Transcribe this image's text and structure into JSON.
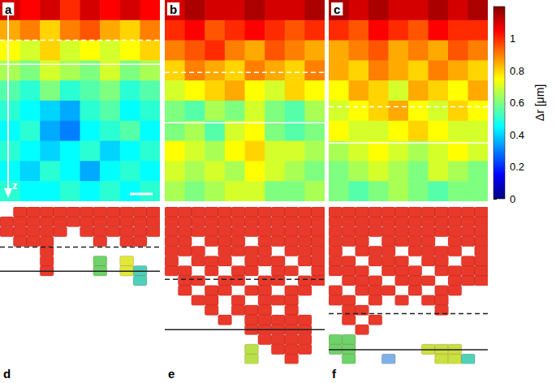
{
  "chart_data": [
    {
      "type": "heatmap",
      "title": "a",
      "axis_label": "z",
      "ylim": [
        0,
        1
      ],
      "tick_labels": false,
      "lines": {
        "dashed": 0.2,
        "solid": 0.32
      },
      "values": [
        [
          1.1,
          1.05,
          1.1,
          1.0,
          1.1,
          1.05,
          1.1,
          1.05
        ],
        [
          0.85,
          0.9,
          0.8,
          0.9,
          0.95,
          0.85,
          0.8,
          0.9
        ],
        [
          0.75,
          0.7,
          0.8,
          0.7,
          0.75,
          0.7,
          0.75,
          0.8
        ],
        [
          0.65,
          0.6,
          0.7,
          0.65,
          0.6,
          0.7,
          0.6,
          0.65
        ],
        [
          0.55,
          0.5,
          0.6,
          0.5,
          0.55,
          0.6,
          0.5,
          0.55
        ],
        [
          0.5,
          0.45,
          0.4,
          0.35,
          0.5,
          0.55,
          0.45,
          0.5
        ],
        [
          0.45,
          0.5,
          0.35,
          0.3,
          0.45,
          0.5,
          0.55,
          0.45
        ],
        [
          0.5,
          0.45,
          0.4,
          0.45,
          0.5,
          0.4,
          0.45,
          0.5
        ],
        [
          0.45,
          0.4,
          0.5,
          0.45,
          0.35,
          0.45,
          0.5,
          0.45
        ],
        [
          0.5,
          0.45,
          0.45,
          0.5,
          0.45,
          0.5,
          0.45,
          0.5
        ]
      ]
    },
    {
      "type": "heatmap",
      "title": "b",
      "ylim": [
        0,
        1
      ],
      "tick_labels": false,
      "lines": {
        "dashed": 0.36,
        "solid": 0.61
      },
      "values": [
        [
          1.1,
          1.15,
          1.1,
          1.1,
          1.15,
          1.1,
          1.1,
          1.15
        ],
        [
          1.0,
          1.05,
          0.95,
          1.0,
          1.05,
          1.0,
          0.95,
          1.0
        ],
        [
          0.9,
          0.95,
          1.0,
          0.9,
          0.85,
          0.95,
          0.9,
          0.85
        ],
        [
          0.8,
          0.9,
          0.85,
          0.8,
          0.9,
          0.85,
          0.8,
          0.9
        ],
        [
          0.7,
          0.75,
          0.8,
          0.85,
          0.75,
          0.7,
          0.8,
          0.75
        ],
        [
          0.6,
          0.55,
          0.65,
          0.6,
          0.7,
          0.6,
          0.55,
          0.65
        ],
        [
          0.6,
          0.65,
          0.55,
          0.7,
          0.75,
          0.6,
          0.55,
          0.6
        ],
        [
          0.75,
          0.7,
          0.65,
          0.75,
          0.8,
          0.7,
          0.7,
          0.65
        ],
        [
          0.7,
          0.65,
          0.7,
          0.65,
          0.75,
          0.7,
          0.65,
          0.6
        ],
        [
          0.65,
          0.6,
          0.65,
          0.7,
          0.7,
          0.6,
          0.6,
          0.65
        ]
      ]
    },
    {
      "type": "heatmap",
      "title": "c",
      "ylim": [
        0,
        1
      ],
      "tick_labels": false,
      "lines": {
        "dashed": 0.53,
        "solid": 0.71
      },
      "values": [
        [
          1.15,
          1.1,
          1.15,
          1.1,
          1.1,
          1.15,
          1.1,
          1.15
        ],
        [
          1.0,
          0.95,
          1.05,
          1.0,
          0.95,
          1.05,
          1.0,
          1.0
        ],
        [
          0.85,
          0.9,
          0.95,
          0.85,
          0.9,
          0.85,
          0.95,
          0.9
        ],
        [
          0.85,
          0.8,
          0.9,
          0.85,
          0.8,
          0.9,
          0.85,
          0.8
        ],
        [
          0.75,
          0.85,
          0.8,
          0.7,
          0.85,
          0.8,
          0.75,
          0.85
        ],
        [
          0.7,
          0.75,
          0.8,
          0.85,
          0.75,
          0.7,
          0.8,
          0.75
        ],
        [
          0.75,
          0.7,
          0.7,
          0.75,
          0.8,
          0.75,
          0.7,
          0.7
        ],
        [
          0.65,
          0.7,
          0.75,
          0.7,
          0.65,
          0.7,
          0.75,
          0.7
        ],
        [
          0.6,
          0.65,
          0.7,
          0.65,
          0.6,
          0.7,
          0.65,
          0.6
        ],
        [
          0.6,
          0.55,
          0.6,
          0.65,
          0.6,
          0.55,
          0.6,
          0.6
        ]
      ]
    },
    {
      "type": "colorbar",
      "label": "Δr [μm]",
      "range": [
        0,
        1.2
      ],
      "ticks": [
        0,
        0.2,
        0.4,
        0.6,
        0.8,
        1
      ],
      "colors": [
        "#00007f",
        "#0000ff",
        "#007fff",
        "#00ffff",
        "#7fff7f",
        "#ffff00",
        "#ff7f00",
        "#ff0000",
        "#7f0000"
      ]
    },
    {
      "type": "clusters",
      "title": "d",
      "ylim": [
        0,
        0.78
      ],
      "tick_labels": false,
      "lines": {
        "dashed": 0.2,
        "solid": 0.32
      },
      "colors": [
        "#e8392b",
        "#6dd36a",
        "#e0e83a",
        "#4fd0b8",
        "#7fb0e8"
      ],
      "values": [
        [
          0,
          1,
          1,
          1,
          1,
          1,
          1,
          1,
          1,
          1,
          1,
          1
        ],
        [
          1,
          1,
          1,
          1,
          1,
          1,
          1,
          1,
          1,
          1,
          1,
          1
        ],
        [
          1,
          1,
          1,
          1,
          1,
          0,
          1,
          1,
          1,
          1,
          1,
          1
        ],
        [
          0,
          1,
          1,
          1,
          0,
          0,
          0,
          1,
          0,
          1,
          1,
          0
        ],
        [
          0,
          0,
          0,
          1,
          0,
          0,
          0,
          0,
          0,
          0,
          0,
          0
        ],
        [
          0,
          0,
          0,
          1,
          0,
          0,
          0,
          2,
          0,
          3,
          0,
          0
        ],
        [
          0,
          0,
          0,
          1,
          0,
          0,
          0,
          2,
          0,
          3,
          4,
          0
        ],
        [
          0,
          0,
          0,
          0,
          0,
          0,
          0,
          0,
          0,
          0,
          4,
          0
        ],
        [
          0,
          0,
          0,
          0,
          0,
          0,
          0,
          0,
          0,
          0,
          0,
          0
        ],
        [
          0,
          0,
          0,
          0,
          0,
          0,
          0,
          0,
          0,
          0,
          0,
          0
        ],
        [
          0,
          0,
          0,
          0,
          0,
          0,
          0,
          0,
          0,
          0,
          0,
          0
        ],
        [
          0,
          0,
          0,
          0,
          0,
          0,
          0,
          0,
          0,
          0,
          0,
          0
        ],
        [
          0,
          0,
          0,
          0,
          0,
          0,
          0,
          0,
          0,
          0,
          0,
          0
        ],
        [
          0,
          0,
          0,
          0,
          0,
          0,
          0,
          0,
          0,
          0,
          0,
          0
        ],
        [
          0,
          0,
          0,
          0,
          0,
          0,
          0,
          0,
          0,
          0,
          0,
          0
        ],
        [
          0,
          0,
          0,
          0,
          0,
          0,
          0,
          0,
          0,
          0,
          0,
          0
        ]
      ]
    },
    {
      "type": "clusters",
      "title": "e",
      "ylim": [
        0,
        0.78
      ],
      "tick_labels": false,
      "lines": {
        "dashed": 0.36,
        "solid": 0.61
      },
      "colors": [
        "#e8392b",
        "#b8e04a"
      ],
      "values": [
        [
          1,
          1,
          1,
          1,
          1,
          1,
          1,
          1,
          1,
          1,
          1,
          1
        ],
        [
          1,
          1,
          1,
          1,
          1,
          1,
          1,
          1,
          1,
          1,
          1,
          1
        ],
        [
          1,
          1,
          1,
          1,
          1,
          1,
          1,
          1,
          1,
          1,
          1,
          1
        ],
        [
          1,
          1,
          0,
          1,
          1,
          1,
          0,
          1,
          1,
          1,
          1,
          1
        ],
        [
          1,
          1,
          1,
          0,
          1,
          1,
          1,
          1,
          0,
          1,
          1,
          1
        ],
        [
          1,
          0,
          1,
          1,
          1,
          0,
          1,
          1,
          1,
          0,
          1,
          1
        ],
        [
          1,
          1,
          0,
          1,
          0,
          1,
          1,
          0,
          1,
          1,
          0,
          1
        ],
        [
          0,
          1,
          1,
          0,
          1,
          1,
          0,
          1,
          1,
          0,
          1,
          1
        ],
        [
          0,
          1,
          0,
          1,
          1,
          0,
          1,
          1,
          0,
          1,
          1,
          0
        ],
        [
          0,
          0,
          1,
          1,
          0,
          1,
          0,
          1,
          1,
          1,
          0,
          0
        ],
        [
          0,
          0,
          0,
          1,
          0,
          1,
          1,
          1,
          0,
          1,
          0,
          0
        ],
        [
          0,
          0,
          0,
          0,
          1,
          0,
          1,
          1,
          1,
          1,
          1,
          0
        ],
        [
          0,
          0,
          0,
          0,
          0,
          0,
          1,
          1,
          1,
          1,
          1,
          0
        ],
        [
          0,
          0,
          0,
          0,
          0,
          0,
          0,
          1,
          1,
          1,
          1,
          0
        ],
        [
          0,
          0,
          0,
          0,
          0,
          0,
          2,
          0,
          1,
          1,
          1,
          0
        ],
        [
          0,
          0,
          0,
          0,
          0,
          0,
          2,
          0,
          0,
          1,
          0,
          0
        ]
      ]
    },
    {
      "type": "clusters",
      "title": "f",
      "ylim": [
        0,
        0.78
      ],
      "tick_labels": false,
      "lines": {
        "dashed": 0.53,
        "solid": 0.71
      },
      "colors": [
        "#e8392b",
        "#6dd36a",
        "#c8e040",
        "#4fd0b8",
        "#7fb0e8"
      ],
      "values": [
        [
          1,
          1,
          1,
          1,
          1,
          1,
          1,
          1,
          1,
          1,
          1,
          1
        ],
        [
          1,
          1,
          1,
          1,
          1,
          1,
          1,
          1,
          1,
          1,
          1,
          1
        ],
        [
          1,
          1,
          1,
          1,
          1,
          1,
          1,
          1,
          1,
          1,
          1,
          1
        ],
        [
          1,
          1,
          1,
          0,
          1,
          1,
          1,
          1,
          0,
          1,
          1,
          1
        ],
        [
          1,
          0,
          1,
          1,
          1,
          0,
          1,
          1,
          1,
          1,
          0,
          1
        ],
        [
          1,
          1,
          0,
          1,
          1,
          1,
          0,
          1,
          1,
          0,
          1,
          1
        ],
        [
          1,
          1,
          1,
          0,
          1,
          1,
          1,
          0,
          1,
          1,
          1,
          1
        ],
        [
          0,
          1,
          1,
          1,
          0,
          1,
          1,
          1,
          0,
          1,
          1,
          1
        ],
        [
          1,
          0,
          1,
          1,
          1,
          0,
          1,
          0,
          1,
          1,
          0,
          0
        ],
        [
          1,
          1,
          0,
          1,
          0,
          1,
          0,
          1,
          1,
          0,
          0,
          0
        ],
        [
          0,
          1,
          1,
          0,
          0,
          0,
          0,
          0,
          1,
          0,
          0,
          0
        ],
        [
          0,
          1,
          0,
          1,
          0,
          0,
          0,
          0,
          0,
          0,
          0,
          0
        ],
        [
          0,
          0,
          1,
          0,
          0,
          0,
          0,
          0,
          0,
          0,
          0,
          0
        ],
        [
          2,
          2,
          0,
          0,
          0,
          0,
          0,
          0,
          0,
          0,
          0,
          0
        ],
        [
          2,
          2,
          0,
          0,
          0,
          0,
          0,
          3,
          3,
          3,
          0,
          0
        ],
        [
          0,
          2,
          0,
          0,
          5,
          0,
          0,
          0,
          3,
          3,
          4,
          0
        ]
      ]
    }
  ]
}
